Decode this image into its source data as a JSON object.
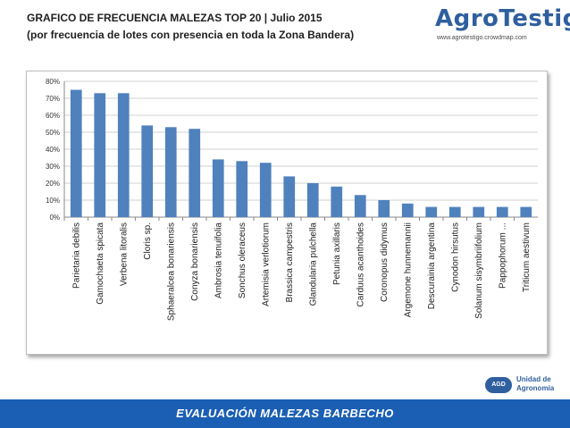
{
  "header": {
    "title": "GRAFICO DE FRECUENCIA MALEZAS TOP 20 | Julio 2015",
    "subtitle": "(por frecuencia de lotes con presencia en toda la Zona Bandera)"
  },
  "logo": {
    "name": "AgroTestigo",
    "url": "www.agrotestigo.crowdmap.com"
  },
  "footer_logo": {
    "badge": "AGD",
    "line1": "Unidad de",
    "line2": "Agronomía"
  },
  "banner": {
    "text": "EVALUACIÓN MALEZAS BARBECHO"
  },
  "colors": {
    "bar": "#4f81bd",
    "banner": "#1a5fb4"
  },
  "chart_data": {
    "type": "bar",
    "categories": [
      "Parietaria debilis",
      "Gamochaeta spicata",
      "Verbena litoralis",
      "Cloris sp.",
      "Sphaeralcea bonariensis",
      "Conyza bonariensis",
      "Ambrosia tenuifolia",
      "Sonchus oleraceus",
      "Artemisia verlotiorum",
      "Brassica campestris",
      "Glandularia pulchella",
      "Petunia axillaris",
      "Carduus acanthoides",
      "Coronopus didymus",
      "Argemone hunnemannii",
      "Descurainia argentina",
      "Cynodon hirsutus",
      "Solanum sisymbriifolium",
      "Pappophorum ...",
      "Triticum aestivum"
    ],
    "values": [
      75,
      73,
      73,
      54,
      53,
      52,
      34,
      33,
      32,
      24,
      20,
      18,
      13,
      10,
      8,
      6,
      6,
      6,
      6,
      6
    ],
    "yticks": [
      "0%",
      "10%",
      "20%",
      "30%",
      "40%",
      "50%",
      "60%",
      "70%",
      "80%"
    ],
    "ylim": [
      0,
      80
    ],
    "grid": true,
    "legend": "none"
  }
}
